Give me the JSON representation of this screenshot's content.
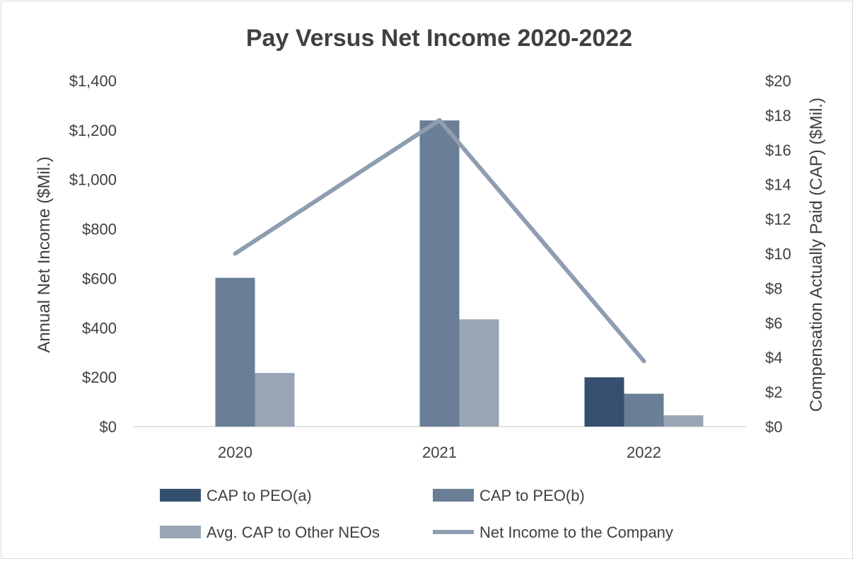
{
  "chart_data": {
    "type": "bar",
    "title": "Pay Versus Net Income 2020-2022",
    "categories": [
      "2020",
      "2021",
      "2022"
    ],
    "ylabel": "Annual Net Income ($Mil.)",
    "y2label": "Compensation Actually Paid (CAP) ($Mil.)",
    "ylim": [
      0,
      1400
    ],
    "y2lim": [
      0,
      20
    ],
    "y_ticks": [
      "$0",
      "$200",
      "$400",
      "$600",
      "$800",
      "$1,000",
      "$1,200",
      "$1,400"
    ],
    "y2_ticks": [
      "$0",
      "$2",
      "$4",
      "$6",
      "$8",
      "$10",
      "$12",
      "$14",
      "$16",
      "$18",
      "$20"
    ],
    "grid": false,
    "legend_position": "bottom",
    "series": [
      {
        "name": "CAP to PEO(a)",
        "kind": "bar",
        "axis": "right",
        "color": "#35506f",
        "values": [
          null,
          null,
          2.85
        ]
      },
      {
        "name": "CAP to PEO(b)",
        "kind": "bar",
        "axis": "right",
        "color": "#6a7f96",
        "values": [
          8.6,
          17.7,
          1.9
        ]
      },
      {
        "name": "Avg. CAP to Other NEOs",
        "kind": "bar",
        "axis": "right",
        "color": "#98a5b5",
        "values": [
          3.1,
          6.2,
          0.65
        ]
      },
      {
        "name": "Net Income to the Company",
        "kind": "line",
        "axis": "left",
        "color": "#8e9db0",
        "values": [
          700,
          1240,
          265
        ]
      }
    ]
  }
}
